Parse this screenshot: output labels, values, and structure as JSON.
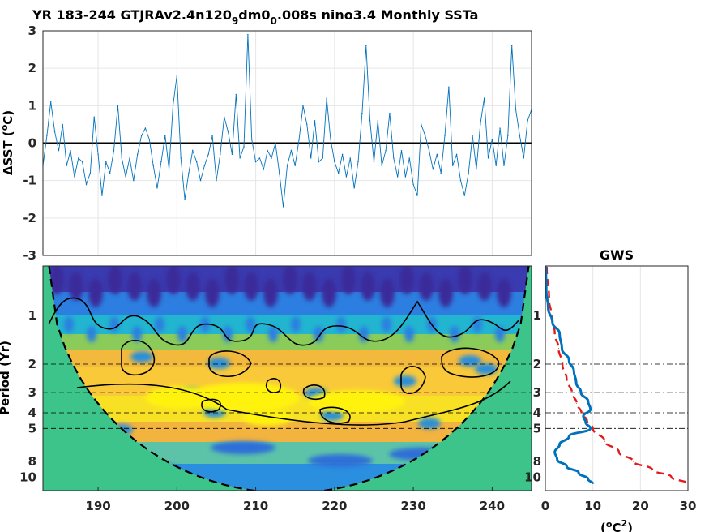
{
  "figure_title": {
    "prefix": "YR 183-244 GTJRAv2.4n120",
    "sub1": "9",
    "mid": "dm0",
    "sub2": "0",
    "suffix": ".008s nino3.4 Monthly SSTa"
  },
  "chart_data": [
    {
      "type": "line",
      "panel": "sst-timeseries",
      "ylabel": "ΔSST (°C)",
      "ylabel_parts": {
        "delta": "ΔSST (",
        "deg": "o",
        "unit": "C)"
      },
      "xlim": [
        183,
        245
      ],
      "ylim": [
        -3,
        3
      ],
      "x_ticks": [
        190,
        200,
        210,
        220,
        230,
        240
      ],
      "y_ticks": [
        -3,
        -2,
        -1,
        0,
        1,
        2,
        3
      ],
      "zero_line": true,
      "grid": true,
      "line_color": "#0072BD",
      "series": [
        {
          "x": [
            183.0,
            183.5,
            184.0,
            184.5,
            185.0,
            185.5,
            186.0,
            186.5,
            187.0,
            187.5,
            188.0,
            188.5,
            189.0,
            189.5,
            190.0,
            190.5,
            191.0,
            191.5,
            192.0,
            192.5,
            193.0,
            193.5,
            194.0,
            194.5,
            195.0,
            195.5,
            196.0,
            196.5,
            197.0,
            197.5,
            198.0,
            198.5,
            199.0,
            199.5,
            200.0,
            200.5,
            201.0,
            201.5,
            202.0,
            202.5,
            203.0,
            203.5,
            204.0,
            204.5,
            205.0,
            205.5,
            206.0,
            206.5,
            207.0,
            207.5,
            208.0,
            208.5,
            209.0,
            209.5,
            210.0,
            210.5,
            211.0,
            211.5,
            212.0,
            212.5,
            213.0,
            213.5,
            214.0,
            214.5,
            215.0,
            215.5,
            216.0,
            216.5,
            217.0,
            217.5,
            218.0,
            218.5,
            219.0,
            219.5,
            220.0,
            220.5,
            221.0,
            221.5,
            222.0,
            222.5,
            223.0,
            223.5,
            224.0,
            224.5,
            225.0,
            225.5,
            226.0,
            226.5,
            227.0,
            227.5,
            228.0,
            228.5,
            229.0,
            229.5,
            230.0,
            230.5,
            231.0,
            231.5,
            232.0,
            232.5,
            233.0,
            233.5,
            234.0,
            234.5,
            235.0,
            235.5,
            236.0,
            236.5,
            237.0,
            237.5,
            238.0,
            238.5,
            239.0,
            239.5,
            240.0,
            240.5,
            241.0,
            241.5,
            242.0,
            242.5,
            243.0,
            243.5,
            244.0,
            244.5,
            245.0
          ],
          "y": [
            -0.6,
            0.2,
            1.1,
            0.3,
            -0.2,
            0.5,
            -0.6,
            -0.2,
            -0.9,
            -0.4,
            -0.5,
            -1.1,
            -0.8,
            0.7,
            -0.3,
            -1.4,
            -0.5,
            -0.8,
            -0.2,
            1.0,
            -0.4,
            -0.9,
            -0.4,
            -1.0,
            -0.3,
            0.2,
            0.4,
            0.1,
            -0.6,
            -1.2,
            -0.5,
            0.2,
            -0.7,
            1.0,
            1.8,
            -0.4,
            -1.5,
            -0.8,
            -0.2,
            -0.5,
            -1.0,
            -0.6,
            -0.3,
            0.2,
            -1.0,
            -0.3,
            0.7,
            0.3,
            -0.3,
            1.3,
            -0.4,
            -0.1,
            2.9,
            0.1,
            -0.5,
            -0.4,
            -0.7,
            -0.2,
            -0.4,
            0.0,
            -0.8,
            -1.7,
            -0.6,
            -0.2,
            -0.6,
            0.1,
            1.0,
            0.5,
            -0.4,
            0.6,
            -0.5,
            -0.4,
            1.2,
            0.1,
            -0.5,
            -0.8,
            -0.3,
            -0.9,
            -0.4,
            -1.2,
            -0.5,
            0.8,
            2.6,
            0.6,
            -0.5,
            0.6,
            -0.6,
            -0.2,
            0.8,
            -0.4,
            -0.9,
            -0.2,
            -0.9,
            -0.4,
            -1.1,
            -1.4,
            0.5,
            0.2,
            -0.2,
            -0.7,
            -0.3,
            -0.8,
            0.2,
            1.5,
            -0.6,
            -0.3,
            -1.0,
            -1.4,
            -0.8,
            0.2,
            -0.7,
            0.5,
            1.2,
            -0.4,
            0.1,
            -0.6,
            0.4,
            -0.6,
            0.2,
            2.6,
            0.9,
            0.2,
            -0.4,
            0.6,
            0.9
          ]
        }
      ]
    },
    {
      "type": "heatmap",
      "panel": "wavelet-power-spectrum",
      "ylabel": "Period (Yr)",
      "xlim": [
        183,
        245
      ],
      "x_ticks": [
        190,
        200,
        210,
        220,
        230,
        240
      ],
      "y_ticks": [
        1,
        2,
        3,
        4,
        5,
        8,
        10
      ],
      "y_scale": "log",
      "colormap": "parula",
      "cone_of_influence": true,
      "significance_contours": true,
      "reference_periods": [
        2,
        3,
        4,
        5
      ]
    },
    {
      "type": "line",
      "panel": "global-wavelet-spectrum",
      "title": "GWS",
      "xlabel_parts": {
        "open": "(",
        "deg": "o",
        "unit": "C",
        "sup": "2",
        "close": ")"
      },
      "xlim": [
        0,
        30
      ],
      "x_ticks": [
        0,
        10,
        20,
        30
      ],
      "y_ticks": [
        1,
        2,
        3,
        4,
        5,
        8,
        10
      ],
      "y_scale": "log",
      "reference_periods": [
        2,
        3,
        4,
        5
      ],
      "series": [
        {
          "style": "solid",
          "color": "#0072BD",
          "period": [
            0.5,
            0.7,
            0.9,
            1.1,
            1.3,
            1.6,
            1.9,
            2.2,
            2.6,
            3.0,
            3.4,
            3.8,
            4.2,
            4.6,
            5.0,
            5.6,
            6.3,
            7.0,
            7.8,
            8.6,
            9.4,
            10.3,
            11.0
          ],
          "power": [
            0.1,
            0.2,
            0.6,
            1.5,
            3.0,
            3.5,
            5.0,
            6.0,
            6.5,
            7.5,
            9.0,
            9.5,
            8.0,
            8.5,
            9.5,
            5.0,
            3.0,
            2.0,
            2.5,
            4.5,
            7.0,
            9.0,
            10.0
          ]
        },
        {
          "style": "dashed",
          "color": "#E31A1C",
          "period": [
            0.5,
            0.8,
            1.0,
            1.3,
            1.6,
            2.0,
            2.5,
            3.0,
            3.5,
            4.0,
            4.5,
            5.0,
            6.0,
            7.0,
            8.0,
            9.0,
            10.0,
            11.0
          ],
          "power": [
            0.3,
            0.8,
            1.3,
            2.0,
            2.8,
            3.6,
            4.5,
            5.6,
            6.6,
            7.6,
            8.8,
            10.0,
            12.5,
            15.5,
            18.5,
            22.5,
            26.5,
            30.0
          ]
        }
      ]
    }
  ]
}
